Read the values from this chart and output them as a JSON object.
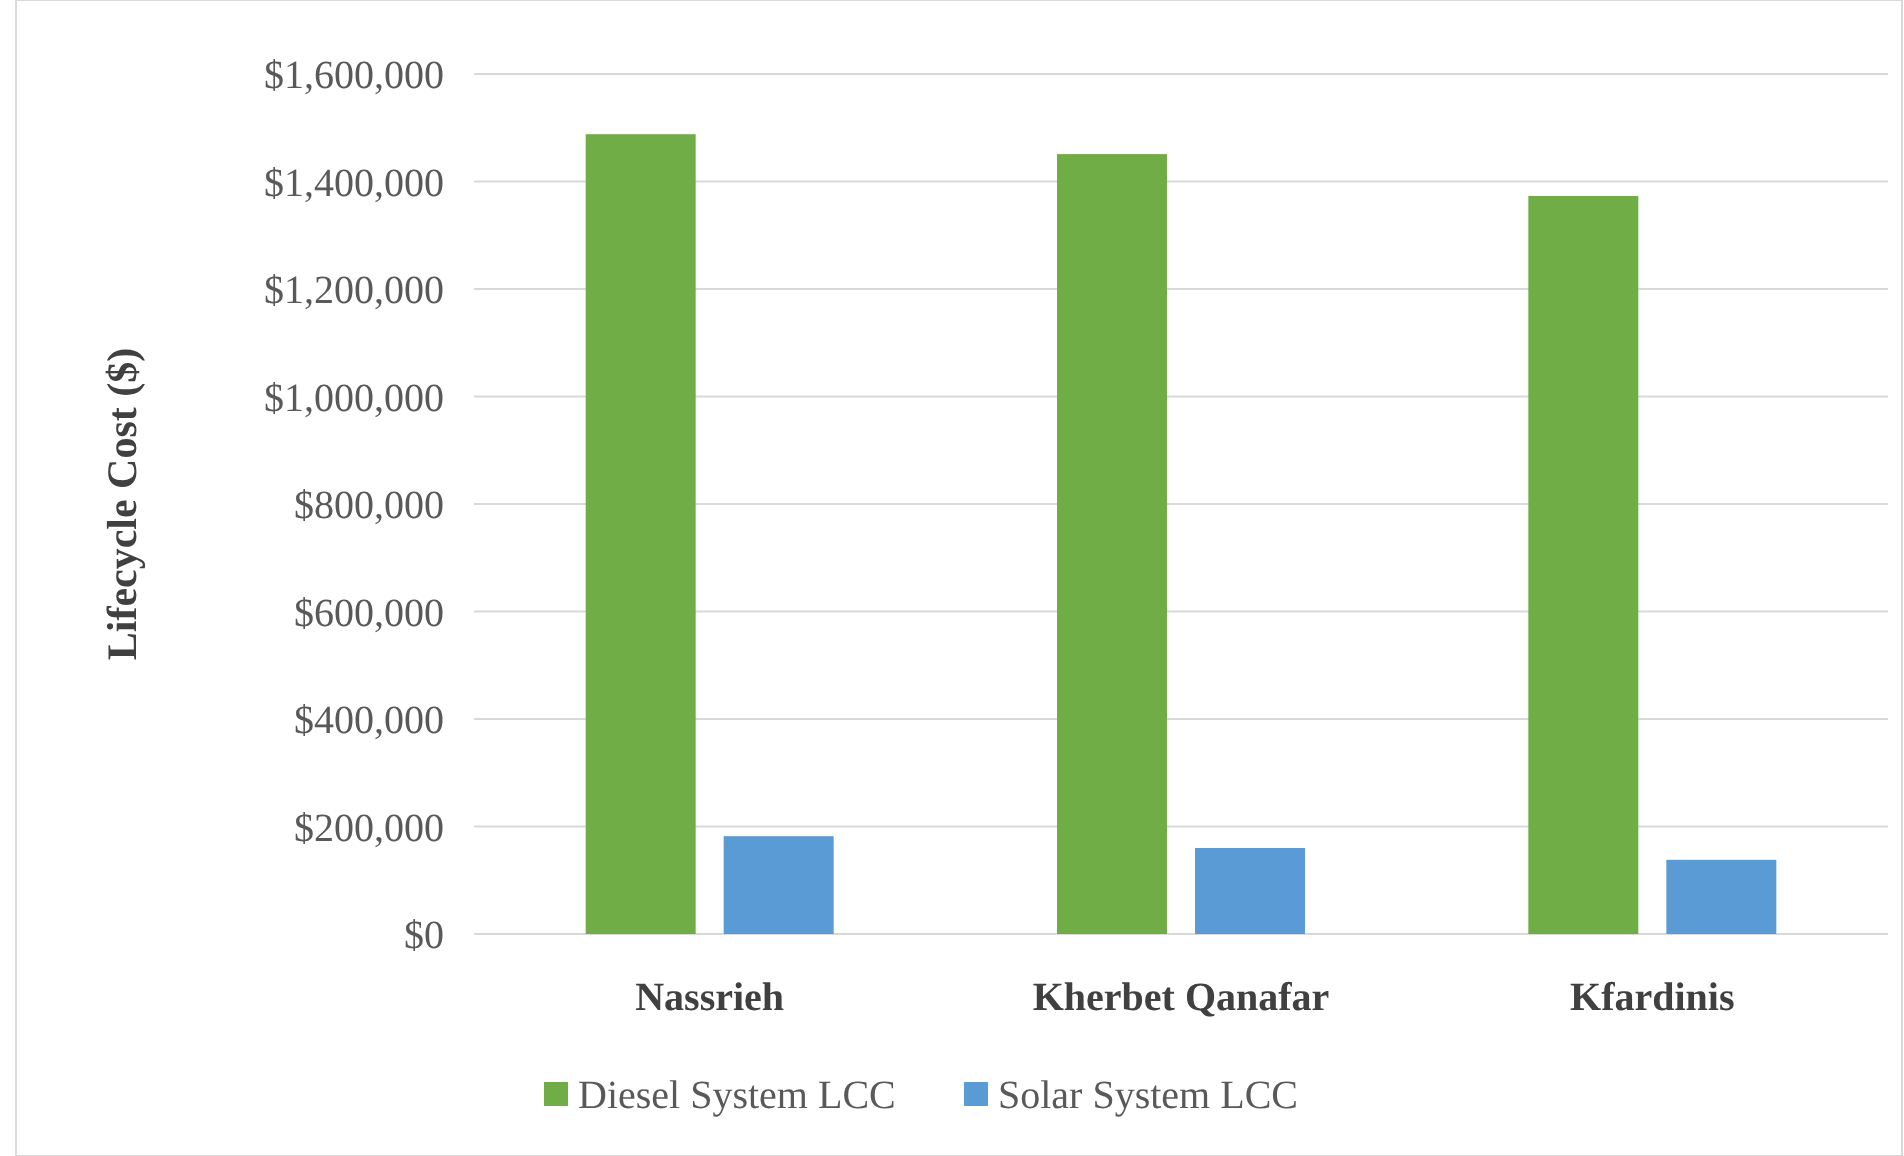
{
  "chart_data": {
    "type": "bar",
    "ylabel": "Lifecycle Cost ($)",
    "categories": [
      "Nassrieh",
      "Kherbet Qanafar",
      "Kfardinis"
    ],
    "series": [
      {
        "name": "Diesel System LCC",
        "color": "#70ad47",
        "values": [
          1488000,
          1451000,
          1373000
        ]
      },
      {
        "name": "Solar System LCC",
        "color": "#5b9bd5",
        "values": [
          182000,
          160000,
          138000
        ]
      }
    ],
    "ylim": [
      0,
      1600000
    ],
    "yticks": [
      {
        "value": 0,
        "label": "$0"
      },
      {
        "value": 200000,
        "label": "$200,000"
      },
      {
        "value": 400000,
        "label": "$400,000"
      },
      {
        "value": 600000,
        "label": "$600,000"
      },
      {
        "value": 800000,
        "label": "$800,000"
      },
      {
        "value": 1000000,
        "label": "$1,000,000"
      },
      {
        "value": 1200000,
        "label": "$1,200,000"
      },
      {
        "value": 1400000,
        "label": "$1,400,000"
      },
      {
        "value": 1600000,
        "label": "$1,600,000"
      }
    ],
    "grid": "y",
    "legend": "bottom"
  }
}
